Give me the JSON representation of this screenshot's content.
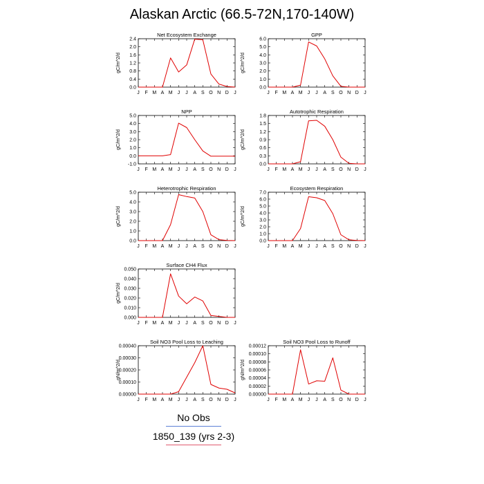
{
  "page": {
    "title": "Alaskan Arctic (66.5-72N,170-140W)"
  },
  "legend": {
    "items": [
      {
        "label": "No Obs",
        "color": "#5b7fd6"
      },
      {
        "label": "1850_139 (yrs 2-3)",
        "color": "#e05a6e"
      }
    ]
  },
  "chart_data": [
    {
      "type": "line",
      "title": "Net Ecosystem Exchange",
      "ylabel": "gC/m^2/d",
      "categories": [
        "J",
        "F",
        "M",
        "A",
        "M",
        "J",
        "J",
        "A",
        "S",
        "O",
        "N",
        "D",
        "J"
      ],
      "ylim": [
        0.0,
        2.4
      ],
      "yticks": [
        "0.0",
        "0.4",
        "0.8",
        "1.2",
        "1.6",
        "2.0",
        "2.4"
      ],
      "series": [
        {
          "color": "#e00000",
          "values": [
            0.0,
            0.0,
            0.0,
            0.0,
            1.45,
            0.75,
            1.1,
            2.38,
            2.35,
            0.65,
            0.15,
            0.03,
            0.0
          ]
        }
      ]
    },
    {
      "type": "line",
      "title": "GPP",
      "ylabel": "gC/m^2/d",
      "categories": [
        "J",
        "F",
        "M",
        "A",
        "M",
        "J",
        "J",
        "A",
        "S",
        "O",
        "N",
        "D",
        "J"
      ],
      "ylim": [
        0.0,
        6.0
      ],
      "yticks": [
        "0.0",
        "1.0",
        "2.0",
        "3.0",
        "4.0",
        "5.0",
        "6.0"
      ],
      "series": [
        {
          "color": "#e00000",
          "values": [
            0.0,
            0.0,
            0.0,
            0.0,
            0.25,
            5.6,
            5.1,
            3.5,
            1.4,
            0.1,
            0.0,
            0.0,
            0.0
          ]
        }
      ]
    },
    {
      "type": "line",
      "title": "NPP",
      "ylabel": "gC/m^2/d",
      "categories": [
        "J",
        "F",
        "M",
        "A",
        "M",
        "J",
        "J",
        "A",
        "S",
        "O",
        "N",
        "D",
        "J"
      ],
      "ylim": [
        -1.0,
        5.0
      ],
      "yticks": [
        "-1.0",
        "0.0",
        "1.0",
        "2.0",
        "3.0",
        "4.0",
        "5.0"
      ],
      "series": [
        {
          "color": "#e00000",
          "values": [
            0.0,
            0.0,
            0.0,
            0.0,
            0.15,
            4.05,
            3.5,
            2.0,
            0.6,
            -0.05,
            -0.05,
            -0.05,
            -0.05
          ]
        }
      ]
    },
    {
      "type": "line",
      "title": "Autotrophic Respiration",
      "ylabel": "gC/m^2/d",
      "categories": [
        "J",
        "F",
        "M",
        "A",
        "M",
        "J",
        "J",
        "A",
        "S",
        "O",
        "N",
        "D",
        "J"
      ],
      "ylim": [
        0.0,
        1.8
      ],
      "yticks": [
        "0.0",
        "0.3",
        "0.6",
        "0.9",
        "1.2",
        "1.5",
        "1.8"
      ],
      "series": [
        {
          "color": "#e00000",
          "values": [
            0.0,
            0.0,
            0.0,
            0.0,
            0.08,
            1.6,
            1.62,
            1.4,
            0.9,
            0.25,
            0.02,
            0.0,
            0.0
          ]
        }
      ]
    },
    {
      "type": "line",
      "title": "Heterotrophic Respiration",
      "ylabel": "gC/m^2/d",
      "categories": [
        "J",
        "F",
        "M",
        "A",
        "M",
        "J",
        "J",
        "A",
        "S",
        "O",
        "N",
        "D",
        "J"
      ],
      "ylim": [
        0.0,
        5.0
      ],
      "yticks": [
        "0.0",
        "1.0",
        "2.0",
        "3.0",
        "4.0",
        "5.0"
      ],
      "series": [
        {
          "color": "#e00000",
          "values": [
            0.0,
            0.0,
            0.0,
            0.0,
            1.65,
            4.75,
            4.55,
            4.4,
            3.0,
            0.6,
            0.1,
            0.02,
            0.0
          ]
        }
      ]
    },
    {
      "type": "line",
      "title": "Ecosystem Respiration",
      "ylabel": "gC/m^2/d",
      "categories": [
        "J",
        "F",
        "M",
        "A",
        "M",
        "J",
        "J",
        "A",
        "S",
        "O",
        "N",
        "D",
        "J"
      ],
      "ylim": [
        0.0,
        7.0
      ],
      "yticks": [
        "0.0",
        "1.0",
        "2.0",
        "3.0",
        "4.0",
        "5.0",
        "6.0",
        "7.0"
      ],
      "series": [
        {
          "color": "#e00000",
          "values": [
            0.0,
            0.0,
            0.0,
            0.0,
            1.75,
            6.35,
            6.2,
            5.8,
            3.9,
            0.85,
            0.12,
            0.02,
            0.0
          ]
        }
      ]
    },
    {
      "type": "line",
      "title": "Surface CH4 Flux",
      "ylabel": "gC/m^2/d",
      "categories": [
        "J",
        "F",
        "M",
        "A",
        "M",
        "J",
        "J",
        "A",
        "S",
        "O",
        "N",
        "D",
        "J"
      ],
      "ylim": [
        0.0,
        0.05
      ],
      "yticks": [
        "0.000",
        "0.010",
        "0.020",
        "0.030",
        "0.040",
        "0.050"
      ],
      "series": [
        {
          "color": "#e00000",
          "values": [
            0.0,
            0.0,
            0.0,
            0.0,
            0.045,
            0.022,
            0.014,
            0.021,
            0.017,
            0.002,
            0.001,
            0.0,
            0.0
          ]
        }
      ]
    },
    {
      "type": "line",
      "title": "Soil NO3 Pool Loss to Leaching",
      "ylabel": "gN/m^2/d",
      "categories": [
        "J",
        "F",
        "M",
        "A",
        "M",
        "J",
        "J",
        "A",
        "S",
        "O",
        "N",
        "D",
        "J"
      ],
      "ylim": [
        0.0,
        0.0004
      ],
      "yticks": [
        "0.00000",
        "0.00010",
        "0.00020",
        "0.00030",
        "0.00040"
      ],
      "series": [
        {
          "color": "#e00000",
          "values": [
            0.0,
            0.0,
            0.0,
            0.0,
            0.0,
            2e-05,
            0.00014,
            0.00026,
            0.0004,
            8e-05,
            5e-05,
            4e-05,
            1e-05
          ]
        }
      ]
    },
    {
      "type": "line",
      "title": "Soil NO3 Pool Loss to Runoff",
      "ylabel": "gN/m^2/d",
      "categories": [
        "J",
        "F",
        "M",
        "A",
        "M",
        "J",
        "J",
        "A",
        "S",
        "O",
        "N",
        "D",
        "J"
      ],
      "ylim": [
        0.0,
        0.00012
      ],
      "yticks": [
        "0.00000",
        "0.00002",
        "0.00004",
        "0.00006",
        "0.00008",
        "0.00010",
        "0.00012"
      ],
      "series": [
        {
          "color": "#e00000",
          "values": [
            0.0,
            0.0,
            0.0,
            0.0,
            0.00011,
            2.5e-05,
            3.3e-05,
            3.2e-05,
            9e-05,
            1e-05,
            0.0,
            0.0,
            0.0
          ]
        }
      ]
    }
  ]
}
